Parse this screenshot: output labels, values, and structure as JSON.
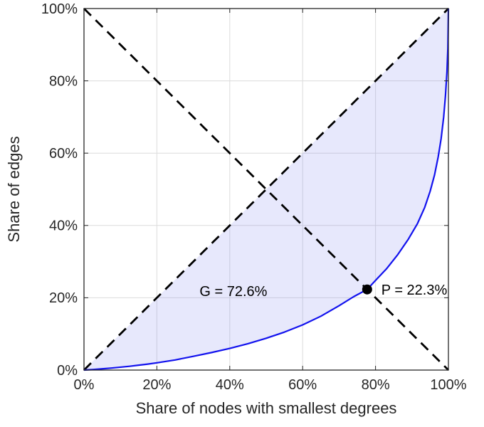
{
  "chart_data": {
    "type": "line",
    "title": "",
    "xlabel": "Share of nodes with smallest degrees",
    "ylabel": "Share of edges",
    "xlim": [
      0,
      100
    ],
    "ylim": [
      0,
      100
    ],
    "x_ticks": [
      0,
      20,
      40,
      60,
      80,
      100
    ],
    "y_ticks": [
      0,
      20,
      40,
      60,
      80,
      100
    ],
    "tick_suffix": "%",
    "grid": true,
    "legend": "none",
    "gini_coefficient_percent": 72.6,
    "pareto_point_percent": 22.3,
    "series": [
      {
        "name": "equality-diagonal",
        "style": "dashed",
        "color": "#000000",
        "x": [
          0,
          100
        ],
        "y": [
          0,
          100
        ]
      },
      {
        "name": "anti-diagonal",
        "style": "dashed",
        "color": "#000000",
        "x": [
          0,
          100
        ],
        "y": [
          100,
          0
        ]
      },
      {
        "name": "lorenz-curve",
        "style": "solid",
        "color": "#1212ee",
        "x": [
          0,
          2.5,
          5,
          7.5,
          10,
          12.5,
          15,
          17.5,
          20,
          25,
          30,
          35,
          40,
          45,
          50,
          55,
          60,
          65,
          70,
          74,
          77.7,
          80,
          83,
          86,
          89,
          91.5,
          93.5,
          95,
          96.2,
          97.2,
          98,
          98.7,
          99.2,
          99.6,
          99.85,
          100
        ],
        "y": [
          0,
          0.15,
          0.35,
          0.55,
          0.8,
          1.05,
          1.35,
          1.65,
          2.0,
          2.8,
          3.8,
          4.85,
          6.0,
          7.3,
          8.8,
          10.5,
          12.5,
          14.9,
          17.8,
          20.3,
          22.3,
          24.8,
          28.0,
          31.8,
          36.2,
          40.5,
          45.0,
          49.5,
          54.0,
          59.0,
          64.0,
          70.0,
          76.0,
          82.5,
          89.0,
          100
        ]
      }
    ],
    "fill_region": {
      "name": "gini-area",
      "between": [
        "equality-diagonal",
        "lorenz-curve"
      ],
      "color": "#7b7df0",
      "opacity": 0.18
    },
    "point": {
      "name": "pareto-point",
      "x": 77.7,
      "y": 22.3,
      "color": "#000000"
    },
    "annotations": [
      {
        "text": "G = 72.6%",
        "x": 41.0,
        "y": 20.5,
        "anchor": "middle"
      },
      {
        "text": "P = 22.3%",
        "x": 81.6,
        "y": 20.9,
        "anchor": "start"
      }
    ],
    "colors": {
      "curve": "#1212ee",
      "dashed": "#000000",
      "grid": "#dcdcdc",
      "frame": "#262626",
      "tick_text": "#262626",
      "annotation_text": "#000000",
      "background": "#ffffff"
    }
  }
}
